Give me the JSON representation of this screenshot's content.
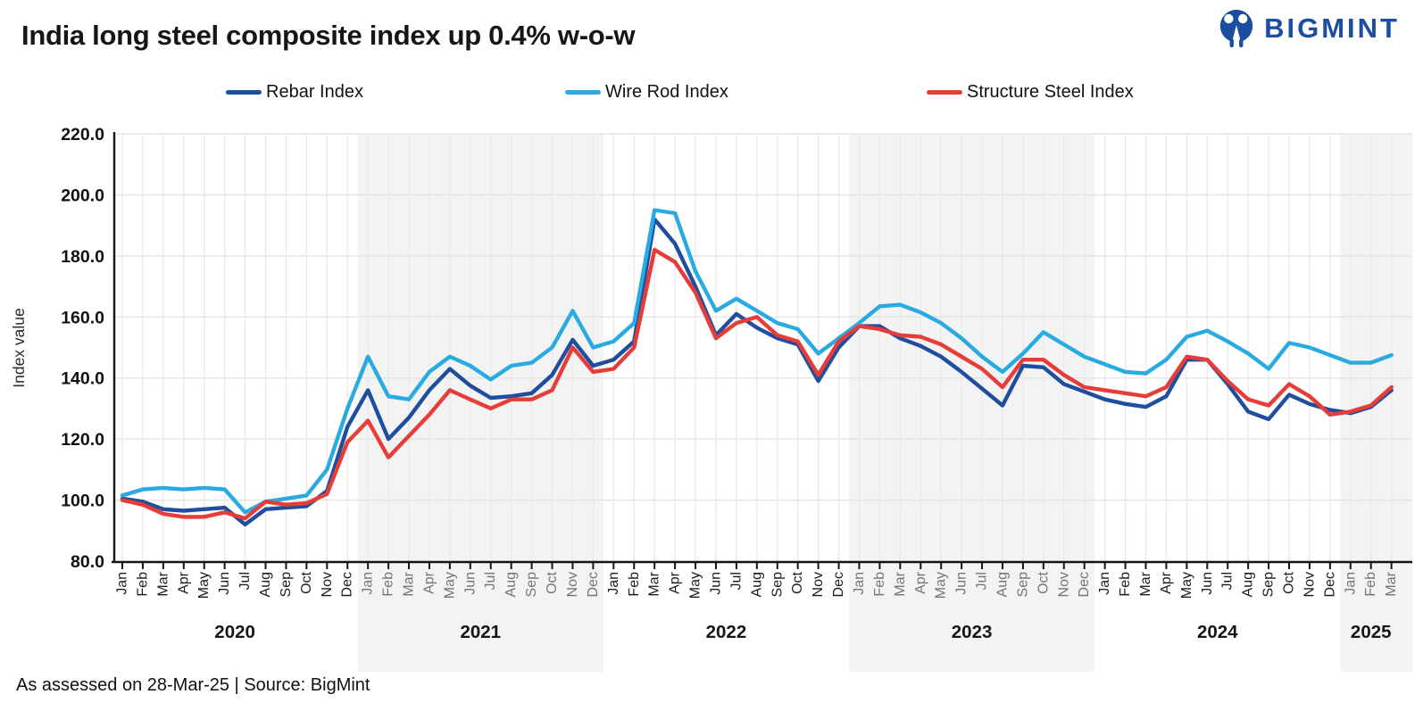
{
  "header": {
    "title": "India long steel composite index up 0.4% w-o-w"
  },
  "logo": {
    "text": "BIGMINT",
    "color": "#1B4DA1"
  },
  "footer": {
    "text": "As assessed on 28-Mar-25 |  Source: BigMint"
  },
  "chart_data": {
    "type": "line",
    "title": "India long steel composite index up 0.4% w-o-w",
    "xlabel": "",
    "ylabel": "Index value",
    "ylim": [
      80,
      220
    ],
    "ytick_step": 20,
    "grid": true,
    "legend_position": "top",
    "band_color": "#f3f3f3",
    "month_labels": [
      "Jan",
      "Feb",
      "Mar",
      "Apr",
      "May",
      "Jun",
      "Jul",
      "Aug",
      "Sep",
      "Oct",
      "Nov",
      "Dec"
    ],
    "years": [
      {
        "label": "2020",
        "months": 12,
        "shaded": false
      },
      {
        "label": "2021",
        "months": 12,
        "shaded": true
      },
      {
        "label": "2022",
        "months": 12,
        "shaded": false
      },
      {
        "label": "2023",
        "months": 12,
        "shaded": true
      },
      {
        "label": "2024",
        "months": 12,
        "shaded": false
      },
      {
        "label": "2025",
        "months": 3,
        "shaded": true
      }
    ],
    "series": [
      {
        "name": "Rebar Index",
        "color": "#1F4E9E",
        "values": [
          100.5,
          99.5,
          97,
          96.5,
          97,
          97.5,
          92,
          97,
          97.5,
          98,
          103,
          124,
          136,
          120,
          127,
          136,
          143,
          137.5,
          133.5,
          134,
          135,
          141,
          152.5,
          144,
          146,
          152,
          192,
          184,
          170,
          154,
          161,
          156.5,
          153,
          151,
          139,
          150,
          157,
          157,
          153,
          150.5,
          147,
          142,
          136.5,
          131,
          144,
          143.5,
          138,
          135.5,
          133,
          131.5,
          130.5,
          134,
          146,
          146,
          138,
          129,
          126.5,
          134.5,
          131.5,
          129.5,
          128.5,
          130.5,
          136
        ]
      },
      {
        "name": "Wire Rod Index",
        "color": "#29ABE2",
        "values": [
          101.5,
          103.5,
          104,
          103.5,
          104,
          103.5,
          96,
          99.5,
          100.5,
          101.5,
          110,
          130,
          147,
          134,
          133,
          142,
          147,
          144,
          139.5,
          144,
          145,
          150,
          162,
          150,
          152,
          158,
          195,
          194,
          175,
          162,
          166,
          162,
          158,
          156,
          148,
          153,
          158,
          163.5,
          164,
          161.5,
          158,
          153,
          147,
          142,
          148,
          155,
          151,
          147,
          144.5,
          142,
          141.5,
          146,
          153.5,
          155.5,
          152,
          148,
          143,
          151.5,
          150,
          147.5,
          145,
          145,
          147.5
        ]
      },
      {
        "name": "Structure Steel Index",
        "color": "#E73C37",
        "values": [
          100,
          98.5,
          95.5,
          94.5,
          94.5,
          96,
          94,
          99.5,
          98.5,
          99,
          102,
          119,
          126,
          114,
          121,
          128,
          136,
          133,
          130,
          133,
          133,
          136,
          150,
          142,
          143,
          150,
          182,
          178,
          168,
          153,
          158,
          160,
          154,
          152,
          141,
          152,
          157,
          156,
          154,
          153.5,
          151,
          147,
          143,
          137,
          146,
          146,
          141,
          137,
          136,
          135,
          134,
          137,
          147,
          146,
          139,
          133,
          131,
          138,
          134,
          128,
          129,
          131,
          137
        ]
      }
    ]
  }
}
